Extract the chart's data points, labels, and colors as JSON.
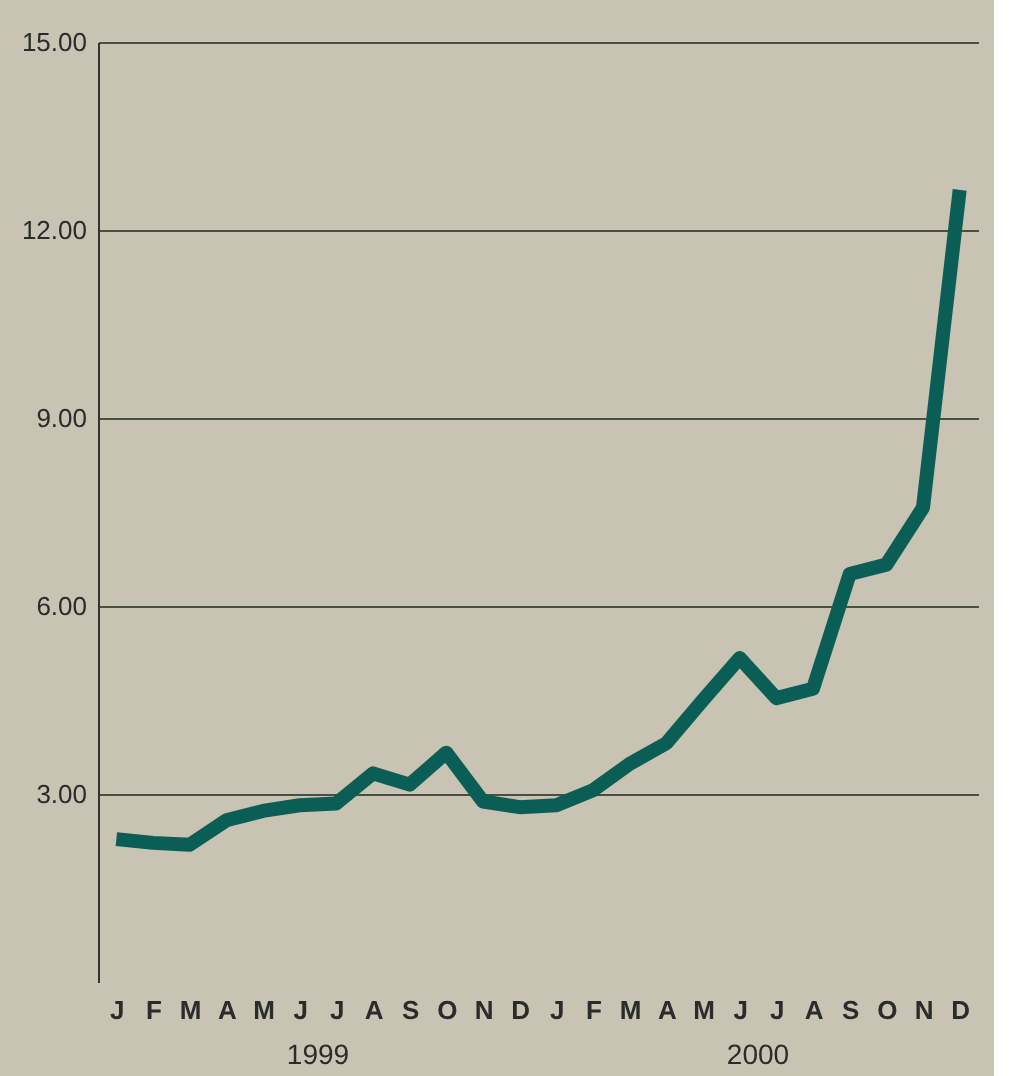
{
  "chart_data": {
    "type": "line",
    "categories": [
      "J",
      "F",
      "M",
      "A",
      "M",
      "J",
      "J",
      "A",
      "S",
      "O",
      "N",
      "D",
      "J",
      "F",
      "M",
      "A",
      "M",
      "J",
      "J",
      "A",
      "S",
      "O",
      "N",
      "D"
    ],
    "series": [
      {
        "color": "#0b5e55",
        "values": [
          2.28,
          2.22,
          2.19,
          2.58,
          2.73,
          2.82,
          2.85,
          3.33,
          3.15,
          3.66,
          2.88,
          2.79,
          2.82,
          3.06,
          3.48,
          3.81,
          4.5,
          5.17,
          4.53,
          4.68,
          6.51,
          6.66,
          7.57,
          12.64
        ]
      }
    ],
    "ylim": [
      0,
      15
    ],
    "yticks": [
      {
        "value": 3,
        "label": "3.00"
      },
      {
        "value": 6,
        "label": "6.00"
      },
      {
        "value": 9,
        "label": "9.00"
      },
      {
        "value": 12,
        "label": "12.00"
      },
      {
        "value": 15,
        "label": "15.00"
      }
    ],
    "grid": "y",
    "marker": "none",
    "line_style": "solid",
    "annotations": [
      "1999",
      "2000"
    ]
  }
}
